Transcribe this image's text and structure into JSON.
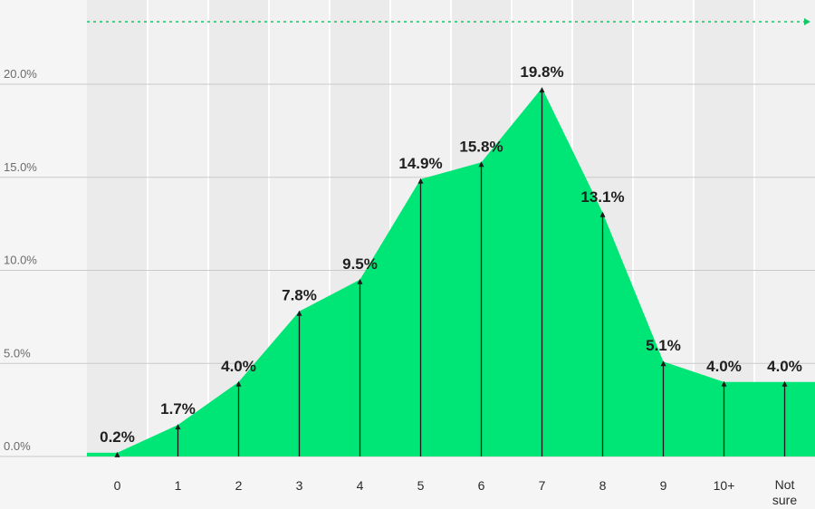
{
  "chart_data": {
    "type": "area",
    "categories": [
      "0",
      "1",
      "2",
      "3",
      "4",
      "5",
      "6",
      "7",
      "8",
      "9",
      "10+",
      "Not sure"
    ],
    "values": [
      0.2,
      1.7,
      4.0,
      7.8,
      9.5,
      14.9,
      15.8,
      19.8,
      13.1,
      5.1,
      4.0,
      4.0
    ],
    "data_labels": [
      "0.2%",
      "1.7%",
      "4.0%",
      "7.8%",
      "9.5%",
      "14.9%",
      "15.8%",
      "19.8%",
      "13.1%",
      "5.1%",
      "4.0%",
      "4.0%"
    ],
    "yticks": [
      0,
      5,
      10,
      15,
      20
    ],
    "ytick_labels": [
      "0.0%",
      "5.0%",
      "10.0%",
      "15.0%",
      "20.0%"
    ],
    "ylim": [
      0,
      24.5
    ],
    "grid": true,
    "colors": {
      "area": "#00e676",
      "plot_bg": "#eaebea",
      "band_light": "#f0f1f0",
      "page_bg": "#f4f5f4",
      "gridline": "#c9cac9",
      "stem": "#1a1a1a",
      "arrow": "#16c46a"
    }
  }
}
